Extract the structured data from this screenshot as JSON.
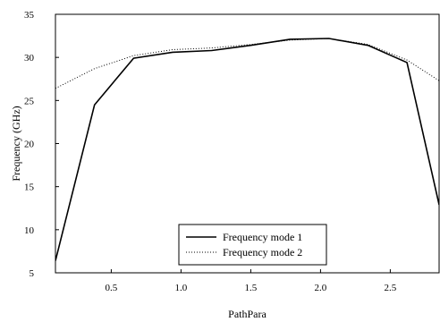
{
  "chart_data": {
    "type": "line",
    "title": "",
    "xlabel": "PathPara",
    "ylabel": "Frequency (GHz)",
    "xlim": [
      0.1,
      2.85
    ],
    "ylim": [
      5,
      35
    ],
    "xticks": [
      0.5,
      1.0,
      1.5,
      2.0,
      2.5
    ],
    "xtick_labels": [
      "0.5",
      "1.0",
      "1.5",
      "2.0",
      "2.5"
    ],
    "yticks": [
      5,
      10,
      15,
      20,
      25,
      30,
      35
    ],
    "ytick_labels": [
      "5",
      "10",
      "15",
      "20",
      "25",
      "30",
      "35"
    ],
    "grid": false,
    "legend_position": "bottom-center",
    "series": [
      {
        "name": "Frequency mode 1",
        "style": "solid",
        "color": "#000000",
        "x": [
          0.1,
          0.38,
          0.66,
          0.94,
          1.22,
          1.5,
          1.78,
          2.06,
          2.34,
          2.62,
          2.85
        ],
        "y": [
          6.4,
          24.5,
          29.9,
          30.6,
          30.8,
          31.4,
          32.1,
          32.2,
          31.4,
          29.4,
          12.9
        ]
      },
      {
        "name": "Frequency mode 2",
        "style": "dotted",
        "color": "#000000",
        "x": [
          0.1,
          0.38,
          0.66,
          0.94,
          1.22,
          1.5,
          1.78,
          2.06,
          2.34,
          2.62,
          2.85
        ],
        "y": [
          26.4,
          28.7,
          30.2,
          30.9,
          31.1,
          31.5,
          32.0,
          32.2,
          31.5,
          29.7,
          27.3
        ]
      }
    ]
  }
}
